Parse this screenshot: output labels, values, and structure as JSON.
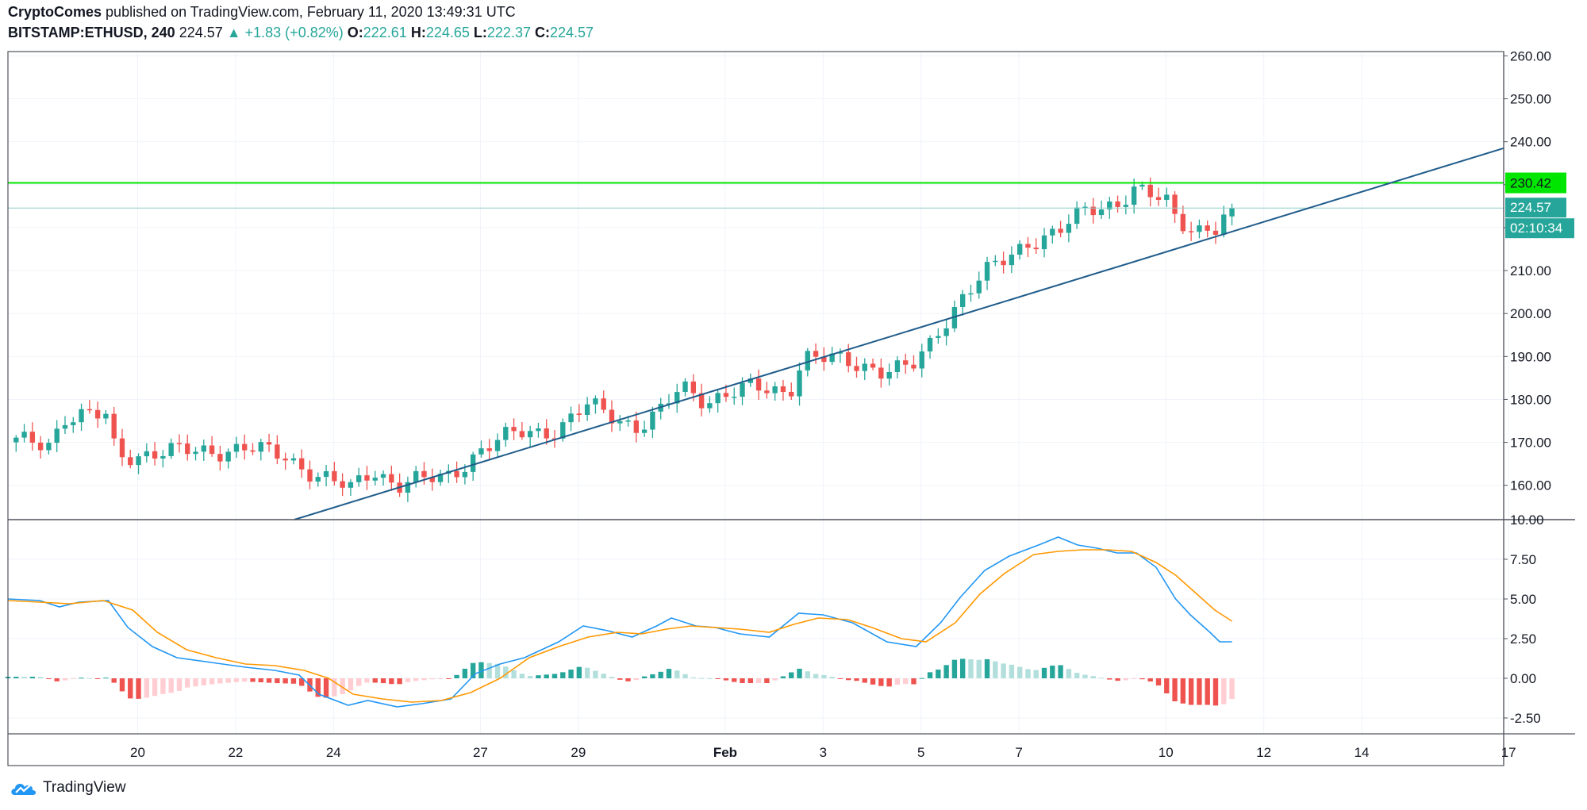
{
  "header": {
    "author": "CryptoComes",
    "published_text": "published on TradingView.com, February 11, 2020 13:49:31 UTC",
    "symbol": "BITSTAMP:ETHUSD, 240",
    "last": "224.57",
    "change": "+1.83 (+0.82%)",
    "o_label": "O:",
    "o_value": "222.61",
    "h_label": "H:",
    "h_value": "224.65",
    "l_label": "L:",
    "l_value": "222.37",
    "c_label": "C:",
    "c_value": "224.57"
  },
  "brand": {
    "name": "TradingView"
  },
  "colors": {
    "up": "#26a69a",
    "down": "#ef5350",
    "hist_up_strong": "#26a69a",
    "hist_up_weak": "#b2dfdb",
    "hist_down_strong": "#ef5350",
    "hist_down_weak": "#ffcdd2",
    "macd": "#2196f3",
    "signal": "#ff9800",
    "resistance": "#00e600",
    "trendline": "#1f5c8b",
    "price_line": "#26a69a"
  },
  "chart_data": [
    {
      "type": "candlestick",
      "ylim": [
        152,
        261
      ],
      "y_ticks": [
        "260.00",
        "250.00",
        "240.00",
        "230.00",
        "220.00",
        "210.00",
        "200.00",
        "190.00",
        "180.00",
        "170.00",
        "160.00"
      ],
      "x_ticks": [
        {
          "label": "20",
          "x": 20
        },
        {
          "label": "22",
          "x": 22
        },
        {
          "label": "24",
          "x": 24
        },
        {
          "label": "27",
          "x": 27
        },
        {
          "label": "29",
          "x": 29
        },
        {
          "label": "Feb",
          "x": 32
        },
        {
          "label": "3",
          "x": 34
        },
        {
          "label": "5",
          "x": 36
        },
        {
          "label": "7",
          "x": 38
        },
        {
          "label": "10",
          "x": 41
        },
        {
          "label": "12",
          "x": 43
        },
        {
          "label": "14",
          "x": 45
        },
        {
          "label": "17",
          "x": 48
        }
      ],
      "x_range": [
        17.35,
        47.9
      ],
      "resistance": {
        "value": 230.42,
        "label": "230.42"
      },
      "last_price": {
        "value": 224.57,
        "label": "224.57"
      },
      "countdown": "02:10:34",
      "trendline": {
        "x": [
          23.2,
          47.9
        ],
        "y": [
          152,
          238.5
        ]
      },
      "anchors": [
        [
          17.35,
          170
        ],
        [
          18.2,
          170
        ],
        [
          18.5,
          176
        ],
        [
          19.4,
          176
        ],
        [
          19.55,
          167
        ],
        [
          21.2,
          168
        ],
        [
          22.2,
          168.5
        ],
        [
          23.0,
          167
        ],
        [
          23.7,
          162
        ],
        [
          24.35,
          159
        ],
        [
          24.8,
          164
        ],
        [
          25.3,
          160
        ],
        [
          26.3,
          162
        ],
        [
          27.0,
          168
        ],
        [
          27.8,
          172.5
        ],
        [
          28.6,
          173
        ],
        [
          29.2,
          178.5
        ],
        [
          29.8,
          176
        ],
        [
          30.2,
          173.5
        ],
        [
          30.7,
          177
        ],
        [
          31.1,
          183
        ],
        [
          31.6,
          180
        ],
        [
          32.5,
          182.5
        ],
        [
          33.3,
          182
        ],
        [
          33.6,
          190
        ],
        [
          34.2,
          189
        ],
        [
          34.9,
          188
        ],
        [
          35.2,
          187
        ],
        [
          35.8,
          187
        ],
        [
          36.15,
          192
        ],
        [
          36.4,
          197
        ],
        [
          36.9,
          205
        ],
        [
          37.4,
          210
        ],
        [
          37.8,
          213
        ],
        [
          38.2,
          217
        ],
        [
          38.8,
          219
        ],
        [
          39.4,
          224
        ],
        [
          40.0,
          226
        ],
        [
          40.35,
          229
        ],
        [
          40.7,
          227
        ],
        [
          41.0,
          226
        ],
        [
          41.2,
          222
        ],
        [
          41.6,
          220
        ],
        [
          42.05,
          220
        ],
        [
          42.35,
          224.57
        ]
      ]
    },
    {
      "type": "macd",
      "ylim": [
        -3.5,
        10
      ],
      "y_ticks": [
        "10.00",
        "7.50",
        "5.00",
        "2.50",
        "0.00",
        "-2.50"
      ],
      "macd": [
        [
          17.35,
          5.0
        ],
        [
          18.0,
          4.9
        ],
        [
          18.4,
          4.5
        ],
        [
          18.8,
          4.8
        ],
        [
          19.4,
          4.9
        ],
        [
          19.8,
          3.2
        ],
        [
          20.3,
          2.0
        ],
        [
          20.8,
          1.3
        ],
        [
          21.5,
          1.0
        ],
        [
          22.2,
          0.7
        ],
        [
          22.8,
          0.5
        ],
        [
          23.3,
          0.2
        ],
        [
          23.7,
          -1.0
        ],
        [
          24.3,
          -1.7
        ],
        [
          24.7,
          -1.4
        ],
        [
          25.3,
          -1.8
        ],
        [
          25.8,
          -1.6
        ],
        [
          26.4,
          -1.3
        ],
        [
          26.9,
          0.3
        ],
        [
          27.4,
          0.9
        ],
        [
          27.9,
          1.3
        ],
        [
          28.6,
          2.3
        ],
        [
          29.1,
          3.3
        ],
        [
          29.6,
          3.0
        ],
        [
          30.1,
          2.6
        ],
        [
          30.6,
          3.3
        ],
        [
          30.9,
          3.8
        ],
        [
          31.4,
          3.3
        ],
        [
          31.8,
          3.2
        ],
        [
          32.3,
          2.8
        ],
        [
          32.9,
          2.6
        ],
        [
          33.5,
          4.1
        ],
        [
          34.0,
          4.0
        ],
        [
          34.6,
          3.5
        ],
        [
          35.3,
          2.3
        ],
        [
          35.9,
          2.0
        ],
        [
          36.4,
          3.5
        ],
        [
          36.8,
          5.1
        ],
        [
          37.3,
          6.8
        ],
        [
          37.8,
          7.7
        ],
        [
          38.4,
          8.4
        ],
        [
          38.8,
          8.9
        ],
        [
          39.2,
          8.4
        ],
        [
          39.6,
          8.2
        ],
        [
          40.0,
          7.9
        ],
        [
          40.4,
          7.9
        ],
        [
          40.8,
          7.0
        ],
        [
          41.2,
          5.0
        ],
        [
          41.5,
          4.0
        ],
        [
          41.9,
          2.9
        ],
        [
          42.1,
          2.3
        ],
        [
          42.35,
          2.3
        ]
      ],
      "signal": [
        [
          17.35,
          4.9
        ],
        [
          18.0,
          4.8
        ],
        [
          18.6,
          4.7
        ],
        [
          19.3,
          4.9
        ],
        [
          19.9,
          4.3
        ],
        [
          20.4,
          2.9
        ],
        [
          21.0,
          1.8
        ],
        [
          21.6,
          1.3
        ],
        [
          22.2,
          0.9
        ],
        [
          22.8,
          0.8
        ],
        [
          23.4,
          0.5
        ],
        [
          23.9,
          0.0
        ],
        [
          24.4,
          -1.0
        ],
        [
          25.0,
          -1.3
        ],
        [
          25.6,
          -1.5
        ],
        [
          26.2,
          -1.4
        ],
        [
          26.8,
          -0.9
        ],
        [
          27.4,
          0.0
        ],
        [
          28.0,
          1.3
        ],
        [
          28.6,
          2.0
        ],
        [
          29.2,
          2.6
        ],
        [
          29.8,
          2.9
        ],
        [
          30.3,
          2.8
        ],
        [
          30.8,
          3.1
        ],
        [
          31.3,
          3.3
        ],
        [
          31.8,
          3.2
        ],
        [
          32.3,
          3.1
        ],
        [
          32.9,
          2.9
        ],
        [
          33.4,
          3.4
        ],
        [
          33.9,
          3.8
        ],
        [
          34.5,
          3.7
        ],
        [
          35.0,
          3.2
        ],
        [
          35.6,
          2.5
        ],
        [
          36.1,
          2.3
        ],
        [
          36.7,
          3.5
        ],
        [
          37.2,
          5.3
        ],
        [
          37.7,
          6.6
        ],
        [
          38.3,
          7.8
        ],
        [
          38.8,
          8.0
        ],
        [
          39.3,
          8.1
        ],
        [
          39.8,
          8.1
        ],
        [
          40.3,
          8.0
        ],
        [
          40.8,
          7.3
        ],
        [
          41.2,
          6.5
        ],
        [
          41.6,
          5.4
        ],
        [
          42.0,
          4.3
        ],
        [
          42.35,
          3.6
        ]
      ]
    }
  ]
}
